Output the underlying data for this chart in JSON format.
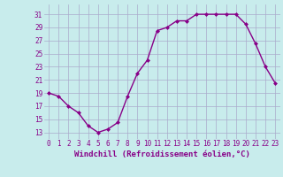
{
  "x": [
    0,
    1,
    2,
    3,
    4,
    5,
    6,
    7,
    8,
    9,
    10,
    11,
    12,
    13,
    14,
    15,
    16,
    17,
    18,
    19,
    20,
    21,
    22,
    23
  ],
  "y": [
    19,
    18.5,
    17,
    16,
    14,
    13,
    13.5,
    14.5,
    18.5,
    22,
    24,
    28.5,
    29,
    30,
    30,
    31,
    31,
    31,
    31,
    31,
    29.5,
    26.5,
    23,
    20.5
  ],
  "line_color": "#880088",
  "marker": "D",
  "marker_size": 2.0,
  "bg_color": "#c8ecec",
  "grid_color": "#aaaacc",
  "xlabel": "Windchill (Refroidissement éolien,°C)",
  "xlabel_color": "#880088",
  "xlabel_fontsize": 6.5,
  "ylabel_ticks": [
    13,
    15,
    17,
    19,
    21,
    23,
    25,
    27,
    29,
    31
  ],
  "xtick_labels": [
    "0",
    "1",
    "2",
    "3",
    "4",
    "5",
    "6",
    "7",
    "8",
    "9",
    "10",
    "11",
    "12",
    "13",
    "14",
    "15",
    "16",
    "17",
    "18",
    "19",
    "20",
    "21",
    "22",
    "23"
  ],
  "ylim": [
    12.0,
    32.5
  ],
  "xlim": [
    -0.5,
    23.5
  ],
  "tick_fontsize": 5.5,
  "tick_color": "#880088",
  "line_width": 1.0
}
